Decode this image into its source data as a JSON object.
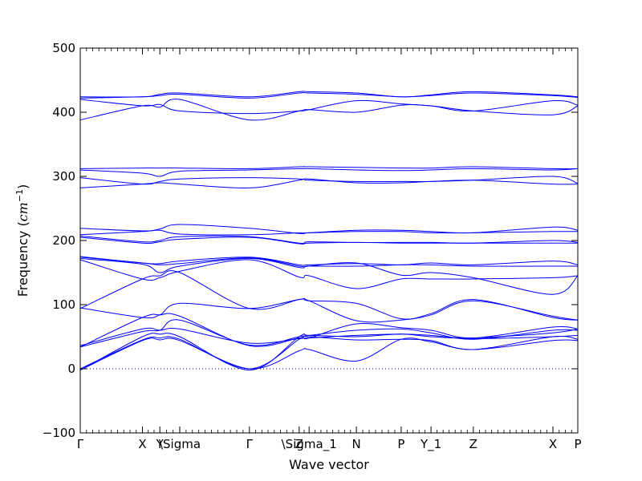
{
  "chart_data": {
    "type": "line",
    "title": "",
    "xlabel": "Wave vector",
    "ylabel": {
      "prefix": "Frequency (",
      "unit": "cm",
      "exponent": "−1",
      "suffix": ")"
    },
    "ylim": [
      -100,
      500
    ],
    "yticks": [
      -100,
      0,
      100,
      200,
      300,
      400,
      500
    ],
    "xlim": [
      0,
      1
    ],
    "grid": false,
    "legend": "none",
    "colors": {
      "bands": "#0000ff",
      "zero_line": "#000080",
      "axes": "#000000"
    },
    "high_symmetry_points": [
      {
        "label": "Γ",
        "x": 0.0
      },
      {
        "label": "X",
        "x": 0.125
      },
      {
        "label": "Y",
        "x": 0.16
      },
      {
        "label": "\\Sigma",
        "x": 0.2
      },
      {
        "label": "Γ",
        "x": 0.34
      },
      {
        "label": "Z",
        "x": 0.44
      },
      {
        "label": "\\Sigma_1",
        "x": 0.46
      },
      {
        "label": "N",
        "x": 0.555
      },
      {
        "label": "P",
        "x": 0.645
      },
      {
        "label": "Y_1",
        "x": 0.705
      },
      {
        "label": "Z",
        "x": 0.79
      },
      {
        "label": "X",
        "x": 0.95
      },
      {
        "label": "P",
        "x": 1.0
      }
    ],
    "x_samples": [
      0.0,
      0.125,
      0.16,
      0.2,
      0.34,
      0.44,
      0.46,
      0.555,
      0.645,
      0.705,
      0.79,
      0.95,
      1.0
    ],
    "series": [
      {
        "values": [
          -2,
          50,
          54,
          50,
          -2,
          50,
          52,
          50,
          54,
          50,
          48,
          56,
          62
        ]
      },
      {
        "values": [
          0,
          45,
          48,
          46,
          0,
          46,
          50,
          45,
          46,
          44,
          30,
          50,
          46
        ]
      },
      {
        "values": [
          -2,
          44,
          45,
          44,
          0,
          28,
          30,
          12,
          46,
          42,
          30,
          44,
          44
        ]
      },
      {
        "values": [
          34,
          58,
          60,
          76,
          37,
          50,
          52,
          60,
          62,
          56,
          46,
          60,
          60
        ]
      },
      {
        "values": [
          36,
          62,
          60,
          62,
          40,
          47,
          48,
          52,
          54,
          52,
          47,
          50,
          52
        ]
      },
      {
        "values": [
          34,
          80,
          84,
          82,
          36,
          48,
          48,
          70,
          64,
          60,
          48,
          65,
          62
        ]
      },
      {
        "values": [
          95,
          80,
          84,
          102,
          94,
          108,
          106,
          102,
          78,
          86,
          108,
          80,
          76
        ]
      },
      {
        "values": [
          94,
          140,
          145,
          150,
          94,
          108,
          106,
          75,
          76,
          84,
          106,
          82,
          76
        ]
      },
      {
        "values": [
          170,
          140,
          142,
          152,
          170,
          143,
          145,
          125,
          140,
          140,
          140,
          142,
          145
        ]
      },
      {
        "values": [
          172,
          163,
          150,
          160,
          172,
          158,
          160,
          165,
          146,
          150,
          142,
          116,
          145
        ]
      },
      {
        "values": [
          174,
          165,
          162,
          164,
          173,
          160,
          160,
          160,
          162,
          162,
          160,
          160,
          160
        ]
      },
      {
        "values": [
          175,
          165,
          164,
          168,
          174,
          162,
          162,
          164,
          162,
          165,
          162,
          168,
          162
        ]
      },
      {
        "values": [
          205,
          196,
          198,
          202,
          205,
          195,
          196,
          197,
          196,
          196,
          196,
          196,
          196
        ]
      },
      {
        "values": [
          207,
          198,
          200,
          206,
          206,
          196,
          198,
          197,
          197,
          197,
          196,
          200,
          197
        ]
      },
      {
        "values": [
          209,
          214,
          216,
          210,
          209,
          212,
          212,
          214,
          214,
          212,
          212,
          214,
          214
        ]
      },
      {
        "values": [
          219,
          215,
          218,
          225,
          219,
          211,
          212,
          216,
          216,
          214,
          212,
          221,
          216
        ]
      },
      {
        "values": [
          282,
          288,
          290,
          288,
          282,
          294,
          296,
          290,
          290,
          292,
          294,
          288,
          288
        ]
      },
      {
        "values": [
          298,
          288,
          292,
          296,
          298,
          296,
          294,
          292,
          292,
          292,
          294,
          300,
          289
        ]
      },
      {
        "values": [
          310,
          305,
          300,
          308,
          310,
          312,
          312,
          310,
          309,
          310,
          312,
          310,
          312
        ]
      },
      {
        "values": [
          312,
          313,
          313,
          313,
          312,
          315,
          315,
          314,
          313,
          313,
          315,
          312,
          312
        ]
      },
      {
        "values": [
          388,
          410,
          408,
          420,
          388,
          402,
          404,
          400,
          411,
          410,
          402,
          396,
          410
        ]
      },
      {
        "values": [
          420,
          410,
          412,
          402,
          398,
          402,
          404,
          418,
          413,
          410,
          402,
          418,
          411
        ]
      },
      {
        "values": [
          422,
          424,
          426,
          428,
          422,
          430,
          430,
          428,
          424,
          426,
          430,
          426,
          423
        ]
      },
      {
        "values": [
          424,
          424,
          428,
          430,
          424,
          432,
          432,
          430,
          424,
          427,
          432,
          427,
          424
        ]
      }
    ]
  }
}
